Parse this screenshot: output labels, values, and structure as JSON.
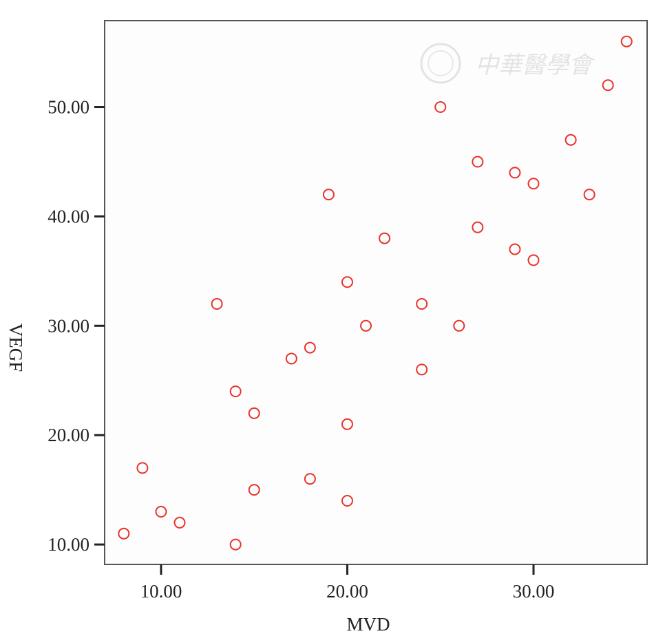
{
  "chart_data": {
    "type": "scatter",
    "title": "",
    "xlabel": "MVD",
    "ylabel": "VEGF",
    "xlim": [
      6.97,
      36.1
    ],
    "ylim": [
      8.18,
      57.9
    ],
    "xticks": [
      10,
      20,
      30
    ],
    "xtick_labels": [
      "10.00",
      "20.00",
      "30.00"
    ],
    "yticks": [
      10,
      20,
      30,
      40,
      50
    ],
    "ytick_labels": [
      "10.00",
      "20.00",
      "30.00",
      "40.00",
      "50.00"
    ],
    "grid": false,
    "marker": "open-circle",
    "marker_color": "#e8332b",
    "points": [
      {
        "x": 8,
        "y": 11
      },
      {
        "x": 9,
        "y": 17
      },
      {
        "x": 10,
        "y": 13
      },
      {
        "x": 11,
        "y": 12
      },
      {
        "x": 13,
        "y": 32
      },
      {
        "x": 14,
        "y": 24
      },
      {
        "x": 14,
        "y": 10
      },
      {
        "x": 15,
        "y": 22
      },
      {
        "x": 15,
        "y": 15
      },
      {
        "x": 17,
        "y": 27
      },
      {
        "x": 18,
        "y": 28
      },
      {
        "x": 18,
        "y": 16
      },
      {
        "x": 19,
        "y": 42
      },
      {
        "x": 20,
        "y": 34
      },
      {
        "x": 20,
        "y": 21
      },
      {
        "x": 20,
        "y": 14
      },
      {
        "x": 21,
        "y": 30
      },
      {
        "x": 22,
        "y": 38
      },
      {
        "x": 24,
        "y": 32
      },
      {
        "x": 24,
        "y": 26
      },
      {
        "x": 25,
        "y": 50
      },
      {
        "x": 26,
        "y": 30
      },
      {
        "x": 27,
        "y": 45
      },
      {
        "x": 27,
        "y": 39
      },
      {
        "x": 29,
        "y": 44
      },
      {
        "x": 29,
        "y": 37
      },
      {
        "x": 30,
        "y": 43
      },
      {
        "x": 30,
        "y": 36
      },
      {
        "x": 32,
        "y": 47
      },
      {
        "x": 33,
        "y": 42
      },
      {
        "x": 34,
        "y": 52
      },
      {
        "x": 35,
        "y": 56
      }
    ]
  },
  "watermark": {
    "text": "中華醫學會"
  }
}
